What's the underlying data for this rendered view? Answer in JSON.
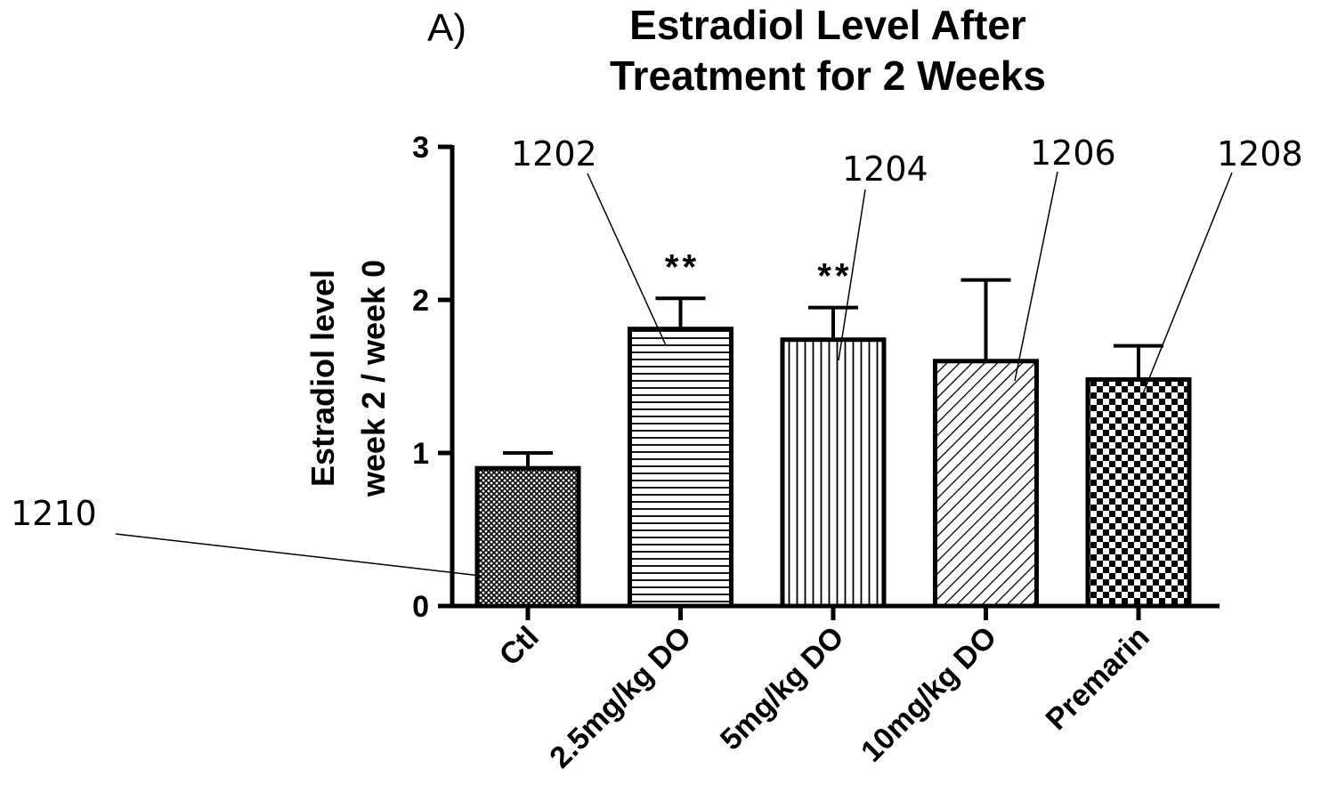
{
  "panel_label": "A)",
  "chart_data": {
    "type": "bar",
    "title_lines": [
      "Estradiol Level After",
      "Treatment for 2 Weeks"
    ],
    "ylabel_lines": [
      "Estradiol level",
      "week 2 / week 0"
    ],
    "xlabel": "",
    "ylim": [
      0,
      3
    ],
    "yticks": [
      "0",
      "1",
      "2",
      "3"
    ],
    "grid": false,
    "categories": [
      "Ctl",
      "2.5mg/kg DO",
      "5mg/kg DO",
      "10mg/kg DO",
      "Premarin"
    ],
    "values": [
      0.9,
      1.81,
      1.74,
      1.6,
      1.48
    ],
    "error_upper": [
      0.1,
      0.2,
      0.21,
      0.53,
      0.22
    ],
    "patterns": [
      "fine-crosshatch",
      "horizontal-lines",
      "vertical-lines",
      "diagonal-lines",
      "checkerboard"
    ],
    "significance": [
      "",
      "**",
      "**",
      "",
      ""
    ],
    "reference_labels": [
      "1210",
      "1202",
      "1204",
      "1206",
      "1208"
    ]
  }
}
